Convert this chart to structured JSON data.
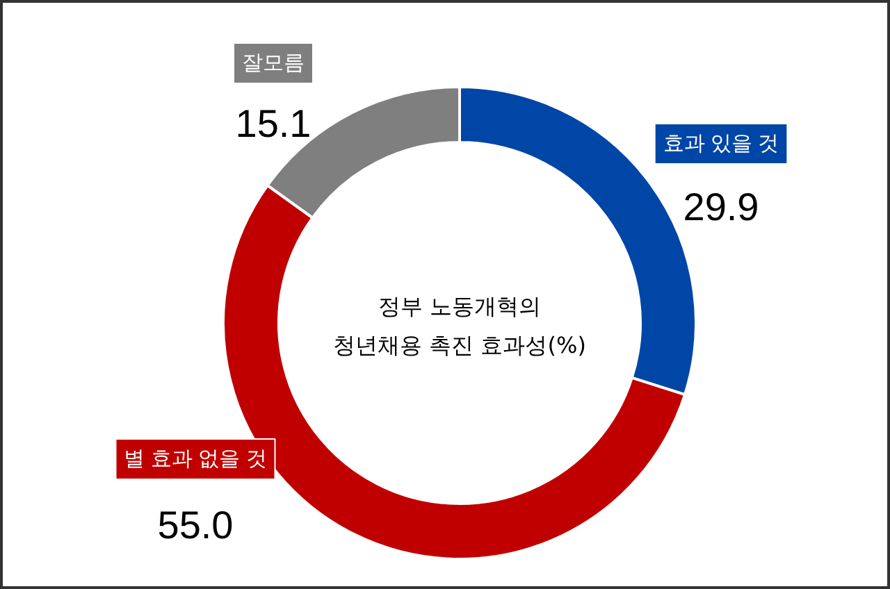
{
  "chart_data": {
    "type": "donut",
    "title": "정부 노동개혁의\n청년채용 촉진 효과성(%)",
    "categories": [
      "효과 있을 것",
      "별 효과 없을 것",
      "잘모름"
    ],
    "values": [
      29.9,
      55.0,
      15.1
    ],
    "value_labels": [
      "29.9",
      "55.0",
      "15.1"
    ],
    "colors": [
      "#0046a6",
      "#c00000",
      "#7f7f7f"
    ]
  }
}
